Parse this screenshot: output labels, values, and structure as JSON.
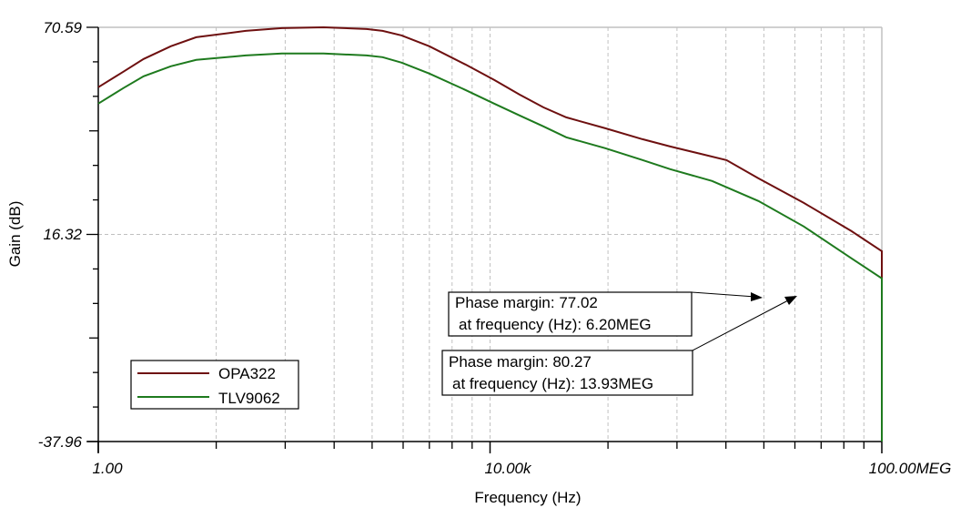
{
  "chart_data": {
    "type": "line",
    "title": "",
    "xlabel": "Frequency (Hz)",
    "ylabel": "Gain (dB)",
    "xscale": "log",
    "xlim": [
      1,
      100000000
    ],
    "ylim": [
      -37.96,
      70.59
    ],
    "x_tick_labels": [
      "1.00",
      "10.00k",
      "100.00MEG"
    ],
    "x_tick_values": [
      1,
      10000,
      100000000
    ],
    "y_tick_labels": [
      "70.59",
      "16.32",
      "-37.96"
    ],
    "y_tick_values": [
      70.59,
      16.32,
      -37.96
    ],
    "grid": true,
    "legend_position": "lower-left",
    "series": [
      {
        "name": "OPA322",
        "color": "#6e1010",
        "x": [
          1,
          1.8,
          2.9,
          5.5,
          10,
          32,
          75,
          200,
          550,
          800,
          1250,
          2400,
          5600,
          11000,
          20000,
          35000,
          60000,
          150000,
          360000,
          690000,
          1400000,
          2600000,
          5500000,
          16000000,
          49000000,
          110000000,
          210000000,
          390000000,
          580000000,
          1000000000,
          1700000000
        ],
        "y": [
          54.89,
          58.94,
          62.28,
          65.62,
          68.0,
          69.67,
          70.38,
          70.59,
          70.14,
          69.67,
          68.47,
          65.62,
          60.85,
          56.79,
          52.97,
          49.63,
          47.0,
          44.14,
          41.28,
          39.37,
          37.46,
          35.79,
          31.02,
          24.57,
          17.18,
          11.93,
          5.97,
          -0.71,
          -6.67,
          -12.64,
          -20.75
        ]
      },
      {
        "name": "TLV9062",
        "color": "#1e7a1e",
        "x": [
          1,
          1.8,
          2.9,
          5.5,
          10,
          32,
          75,
          200,
          550,
          800,
          1250,
          2400,
          5600,
          11000,
          20000,
          35000,
          60000,
          150000,
          360000,
          690000,
          1850000,
          5500000,
          16000000,
          49000000,
          110000000,
          240000000,
          480000000,
          900000000,
          1700000000,
          2700000000,
          4300000000
        ],
        "y": [
          50.6,
          54.65,
          57.75,
          60.37,
          62.04,
          63.23,
          63.71,
          63.71,
          63.23,
          62.76,
          61.33,
          58.47,
          54.18,
          50.6,
          47.49,
          44.63,
          41.77,
          38.9,
          35.8,
          33.41,
          30.31,
          25.06,
          18.39,
          10.04,
          4.79,
          -0.46,
          -7.14,
          -14.29,
          -23.83,
          -30.98,
          -37.96
        ]
      }
    ],
    "annotations": [
      {
        "line1": "Phase margin: 77.02",
        "line2": " at frequency (Hz): 6.20MEG",
        "target_series": "TLV9062"
      },
      {
        "line1": "Phase margin: 80.27",
        "line2": " at frequency (Hz): 13.93MEG",
        "target_series": "OPA322"
      }
    ]
  },
  "axes": {
    "y_title": "Gain (dB)",
    "x_title": "Frequency (Hz)",
    "y_top": "70.59",
    "y_mid": "16.32",
    "y_bottom": "-37.96",
    "x_left": "1.00",
    "x_mid": "10.00k",
    "x_right": "100.00MEG"
  },
  "legend": {
    "items": [
      {
        "label": "OPA322",
        "color": "#6e1010"
      },
      {
        "label": "TLV9062",
        "color": "#1e7a1e"
      }
    ]
  },
  "annotations": {
    "a1": {
      "line1": "Phase margin: 77.02",
      "line2": "at frequency (Hz): 6.20MEG"
    },
    "a2": {
      "line1": "Phase margin: 80.27",
      "line2": "at frequency (Hz): 13.93MEG"
    }
  },
  "colors": {
    "grid": "#c0c0c0",
    "axis": "#000000",
    "frame": "#c0c0c0"
  }
}
